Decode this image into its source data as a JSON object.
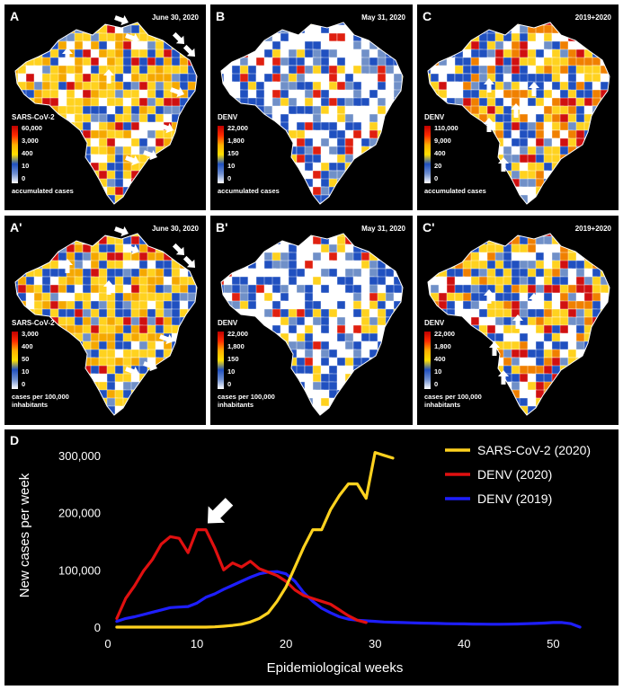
{
  "colors": {
    "panel_bg": "#000000",
    "sars": "#FFD21F",
    "denv2020": "#E01010",
    "denv2019": "#1E1EFF",
    "arrow": "#ffffff"
  },
  "map_panels": [
    {
      "id": "A",
      "label": "A",
      "date": "June 30, 2020",
      "legend_title": "SARS-CoV-2",
      "ticks": [
        "60,000",
        "3,000",
        "400",
        "10",
        "0"
      ],
      "footer": "accumulated cases",
      "scheme": "sars"
    },
    {
      "id": "B",
      "label": "B",
      "date": "May 31, 2020",
      "legend_title": "DENV",
      "ticks": [
        "22,000",
        "1,800",
        "150",
        "10",
        "0"
      ],
      "footer": "accumulated cases",
      "scheme": "denvB"
    },
    {
      "id": "C",
      "label": "C",
      "date": "2019+2020",
      "legend_title": "DENV",
      "ticks": [
        "110,000",
        "9,000",
        "400",
        "20",
        "0"
      ],
      "footer": "accumulated cases",
      "scheme": "denvC"
    },
    {
      "id": "A2",
      "label": "A'",
      "date": "June 30, 2020",
      "legend_title": "SARS-CoV-2",
      "ticks": [
        "3,000",
        "400",
        "50",
        "10",
        "0"
      ],
      "footer": "cases per 100,000 inhabitants",
      "scheme": "sars"
    },
    {
      "id": "B2",
      "label": "B'",
      "date": "May 31, 2020",
      "legend_title": "DENV",
      "ticks": [
        "22,000",
        "1,800",
        "150",
        "10",
        "0"
      ],
      "footer": "cases per 100,000 inhabitants",
      "scheme": "denvB"
    },
    {
      "id": "C2",
      "label": "C'",
      "date": "2019+2020",
      "legend_title": "DENV",
      "ticks": [
        "22,000",
        "1,800",
        "400",
        "10",
        "0"
      ],
      "footer": "cases per 100,000 inhabitants",
      "scheme": "denvC"
    }
  ],
  "chart_data": {
    "type": "line",
    "panel_label": "D",
    "xlabel": "Epidemiological weeks",
    "ylabel": "New cases per week",
    "xlim": [
      0,
      54
    ],
    "ylim": [
      0,
      320000
    ],
    "xticks": [
      0,
      10,
      20,
      30,
      40,
      50
    ],
    "yticks": [
      0,
      100000,
      200000,
      300000
    ],
    "ytick_labels": [
      "0",
      "100,000",
      "200,000",
      "300,000"
    ],
    "legend_position": "top-right",
    "annotations": [
      "arrow pointing at DENV (2020) peak near week 11"
    ],
    "series": [
      {
        "name": "SARS-CoV-2 (2020)",
        "color": "#FFD21F",
        "x": [
          1,
          2,
          3,
          4,
          5,
          6,
          7,
          8,
          9,
          10,
          11,
          12,
          13,
          14,
          15,
          16,
          17,
          18,
          19,
          20,
          21,
          22,
          23,
          24,
          25,
          26,
          27,
          28,
          29,
          30,
          31,
          32
        ],
        "y": [
          0,
          0,
          0,
          0,
          0,
          0,
          0,
          0,
          0,
          0,
          0,
          500,
          1500,
          3000,
          5000,
          9000,
          15000,
          25000,
          45000,
          70000,
          105000,
          140000,
          170000,
          170000,
          205000,
          230000,
          250000,
          250000,
          225000,
          305000,
          300000,
          295000
        ]
      },
      {
        "name": "DENV (2020)",
        "color": "#E01010",
        "x": [
          1,
          2,
          3,
          4,
          5,
          6,
          7,
          8,
          9,
          10,
          11,
          12,
          13,
          14,
          15,
          16,
          17,
          18,
          19,
          20,
          21,
          22,
          23,
          24,
          25,
          26,
          27,
          28,
          29
        ],
        "y": [
          15000,
          50000,
          72000,
          98000,
          118000,
          145000,
          158000,
          155000,
          130000,
          170000,
          170000,
          138000,
          100000,
          112000,
          105000,
          115000,
          102000,
          96000,
          90000,
          80000,
          65000,
          55000,
          50000,
          45000,
          40000,
          30000,
          20000,
          12000,
          8000
        ]
      },
      {
        "name": "DENV (2019)",
        "color": "#1E1EFF",
        "x": [
          1,
          2,
          3,
          4,
          5,
          6,
          7,
          8,
          9,
          10,
          11,
          12,
          13,
          14,
          15,
          16,
          17,
          18,
          19,
          20,
          21,
          22,
          23,
          24,
          25,
          26,
          27,
          28,
          29,
          30,
          31,
          32,
          33,
          34,
          35,
          36,
          37,
          38,
          39,
          40,
          41,
          42,
          43,
          44,
          45,
          46,
          47,
          48,
          49,
          50,
          51,
          52,
          53
        ],
        "y": [
          10000,
          15000,
          18000,
          22000,
          26000,
          30000,
          34000,
          35000,
          36000,
          42000,
          52000,
          58000,
          66000,
          73000,
          80000,
          87000,
          93000,
          96000,
          97000,
          93000,
          80000,
          60000,
          45000,
          33000,
          25000,
          18000,
          14000,
          12000,
          11000,
          10000,
          9000,
          8500,
          8000,
          7500,
          7000,
          6800,
          6500,
          6000,
          5800,
          5600,
          5400,
          5200,
          5000,
          5000,
          5200,
          5500,
          6000,
          6500,
          7000,
          8000,
          8000,
          6000,
          0
        ]
      }
    ]
  }
}
